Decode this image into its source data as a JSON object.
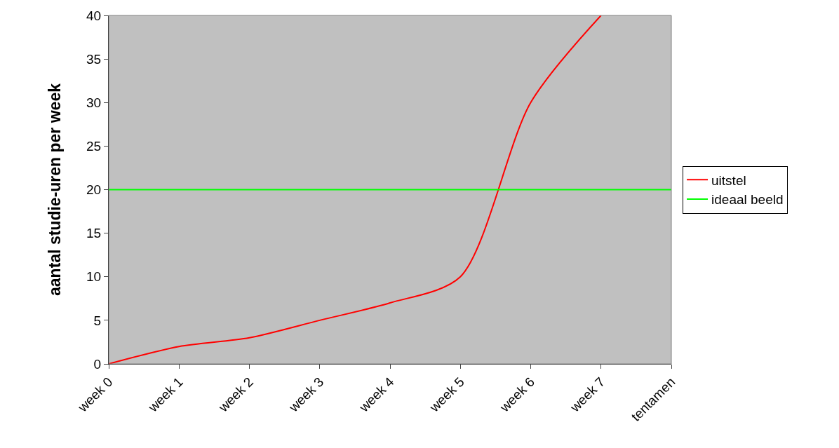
{
  "chart_data": {
    "type": "line",
    "ylabel": "aantal studie-uren per week",
    "categories": [
      "week 0",
      "week 1",
      "week 2",
      "week 3",
      "week 4",
      "week 5",
      "week 6",
      "week 7",
      "tentamen"
    ],
    "series": [
      {
        "name": "uitstel",
        "color": "#ff0000",
        "values": [
          0,
          2,
          3,
          5,
          7,
          10,
          30,
          40,
          null
        ]
      },
      {
        "name": "ideaal beeld",
        "color": "#00ff00",
        "values": [
          20,
          20,
          20,
          20,
          20,
          20,
          20,
          20,
          20
        ]
      }
    ],
    "ylim": [
      0,
      40
    ],
    "yticks": [
      0,
      5,
      10,
      15,
      20,
      25,
      30,
      35,
      40
    ],
    "grid": false,
    "legend": "right",
    "marker": "none",
    "line_style": "solid"
  }
}
